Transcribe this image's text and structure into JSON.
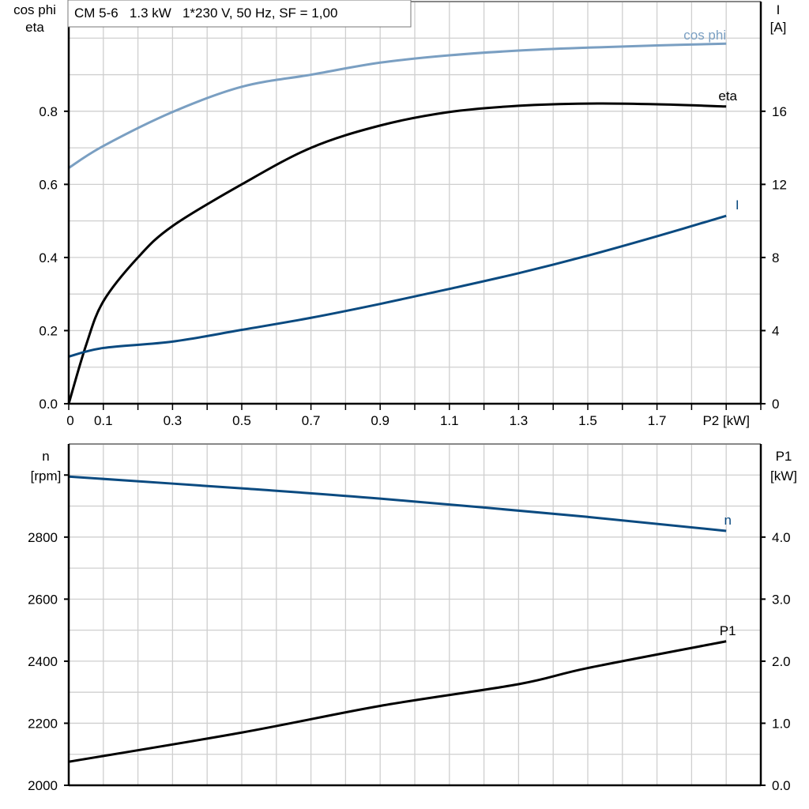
{
  "chart_data": [
    {
      "type": "line",
      "title": "CM 5-6   1.3 kW   1*230 V, 50 Hz, SF = 1,00",
      "xlabel": "P2 [kW]",
      "xlim": [
        0,
        2.0
      ],
      "xticks": [
        "0",
        "0.1",
        "0.3",
        "0.5",
        "0.7",
        "0.9",
        "1.1",
        "1.3",
        "1.5",
        "1.7"
      ],
      "ylabel_left": [
        "cos phi",
        "eta"
      ],
      "ylim_left": [
        0,
        1.1
      ],
      "yticks_left": [
        "0.0",
        "0.2",
        "0.4",
        "0.6",
        "0.8"
      ],
      "ylabel_right": [
        "I",
        "[A]"
      ],
      "ylim_right": [
        0,
        22
      ],
      "yticks_right": [
        "0",
        "4",
        "8",
        "12",
        "16"
      ],
      "grid": true,
      "series": [
        {
          "name": "cos phi",
          "axis": "left",
          "color": "#7a9fc2",
          "x": [
            0,
            0.1,
            0.3,
            0.5,
            0.7,
            0.9,
            1.1,
            1.3,
            1.5,
            1.7,
            1.9
          ],
          "y": [
            0.645,
            0.705,
            0.798,
            0.867,
            0.9,
            0.933,
            0.953,
            0.966,
            0.974,
            0.98,
            0.985
          ]
        },
        {
          "name": "eta",
          "axis": "left",
          "color": "#000000",
          "x": [
            0,
            0.05,
            0.1,
            0.2,
            0.3,
            0.5,
            0.7,
            0.9,
            1.1,
            1.3,
            1.5,
            1.7,
            1.9
          ],
          "y": [
            0,
            0.16,
            0.28,
            0.4,
            0.486,
            0.6,
            0.7,
            0.761,
            0.798,
            0.815,
            0.821,
            0.819,
            0.813
          ]
        },
        {
          "name": "I",
          "axis": "right",
          "color": "#0a4a80",
          "x": [
            0,
            0.1,
            0.3,
            0.5,
            0.7,
            0.9,
            1.1,
            1.3,
            1.5,
            1.7,
            1.9
          ],
          "y": [
            2.58,
            3.05,
            3.4,
            4.04,
            4.7,
            5.46,
            6.28,
            7.14,
            8.1,
            9.16,
            10.28
          ]
        }
      ]
    },
    {
      "type": "line",
      "xlim": [
        0,
        2.0
      ],
      "ylabel_left": [
        "n",
        "[rpm]"
      ],
      "ylim_left": [
        2000,
        3100
      ],
      "yticks_left": [
        "2000",
        "2200",
        "2400",
        "2600",
        "2800"
      ],
      "ylabel_right": [
        "P1",
        "[kW]"
      ],
      "ylim_right": [
        0,
        5.5
      ],
      "yticks_right": [
        "0.0",
        "1.0",
        "2.0",
        "3.0",
        "4.0"
      ],
      "grid": true,
      "series": [
        {
          "name": "n",
          "axis": "left",
          "color": "#0a4a80",
          "x": [
            0,
            0.5,
            0.9,
            1.5,
            1.9
          ],
          "y": [
            2995,
            2957,
            2924,
            2865,
            2820
          ]
        },
        {
          "name": "P1",
          "axis": "right",
          "color": "#000000",
          "x": [
            0,
            0.5,
            0.9,
            1.3,
            1.5,
            1.9
          ],
          "y": [
            0.38,
            0.85,
            1.28,
            1.63,
            1.89,
            2.32
          ]
        }
      ]
    }
  ]
}
